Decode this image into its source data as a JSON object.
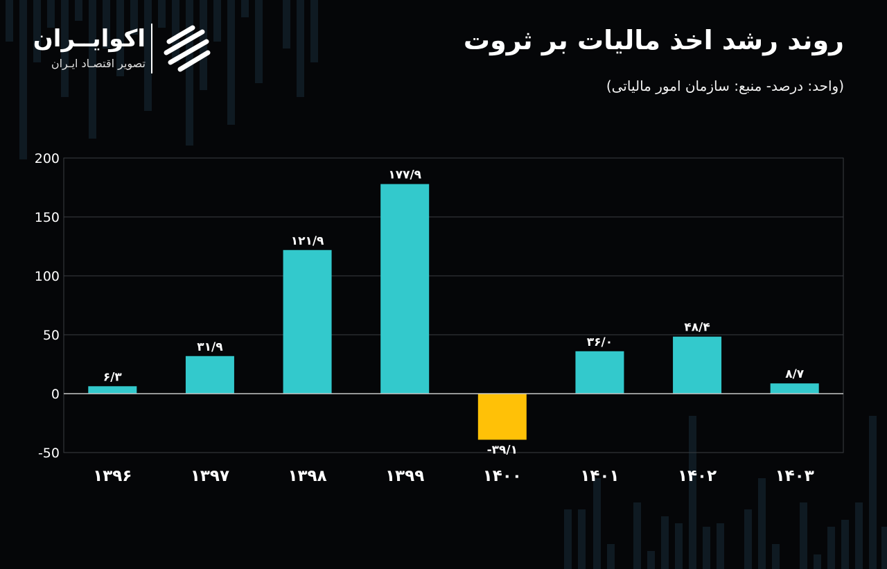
{
  "header": {
    "title": "روند رشد اخذ مالیات بر ثروت",
    "subtitle": "(واحد: درصد- منبع: سازمان امور مالیاتی)"
  },
  "logo": {
    "name": "اکوایــران",
    "tagline": "تصویر اقتصـاد ایـران"
  },
  "colors": {
    "positive": "#33C9CC",
    "negative": "#FFC107",
    "grid": "#3a3d42",
    "zero_line": "#c8c8c8",
    "background": "#050608"
  },
  "chart_data": {
    "type": "bar",
    "title": "روند رشد اخذ مالیات بر ثروت",
    "categories": [
      "۱۳۹۶",
      "۱۳۹۷",
      "۱۳۹۸",
      "۱۳۹۹",
      "۱۴۰۰",
      "۱۴۰۱",
      "۱۴۰۲",
      "۱۴۰۳"
    ],
    "values": [
      6.3,
      31.9,
      121.9,
      177.9,
      -39.1,
      36.0,
      48.4,
      8.7
    ],
    "data_labels": [
      "۶/۳",
      "۳۱/۹",
      "۱۲۱/۹",
      "۱۷۷/۹",
      "-۳۹/۱",
      "۳۶/۰",
      "۴۸/۴",
      "۸/۷"
    ],
    "y_ticks": [
      200,
      150,
      100,
      50,
      0,
      -50
    ],
    "y_tick_labels": [
      "200",
      "150",
      "100",
      "50",
      "0",
      "-50"
    ],
    "ylim": [
      -50,
      200
    ],
    "xlabel": "",
    "ylabel": "",
    "grid": true,
    "legend": false
  }
}
